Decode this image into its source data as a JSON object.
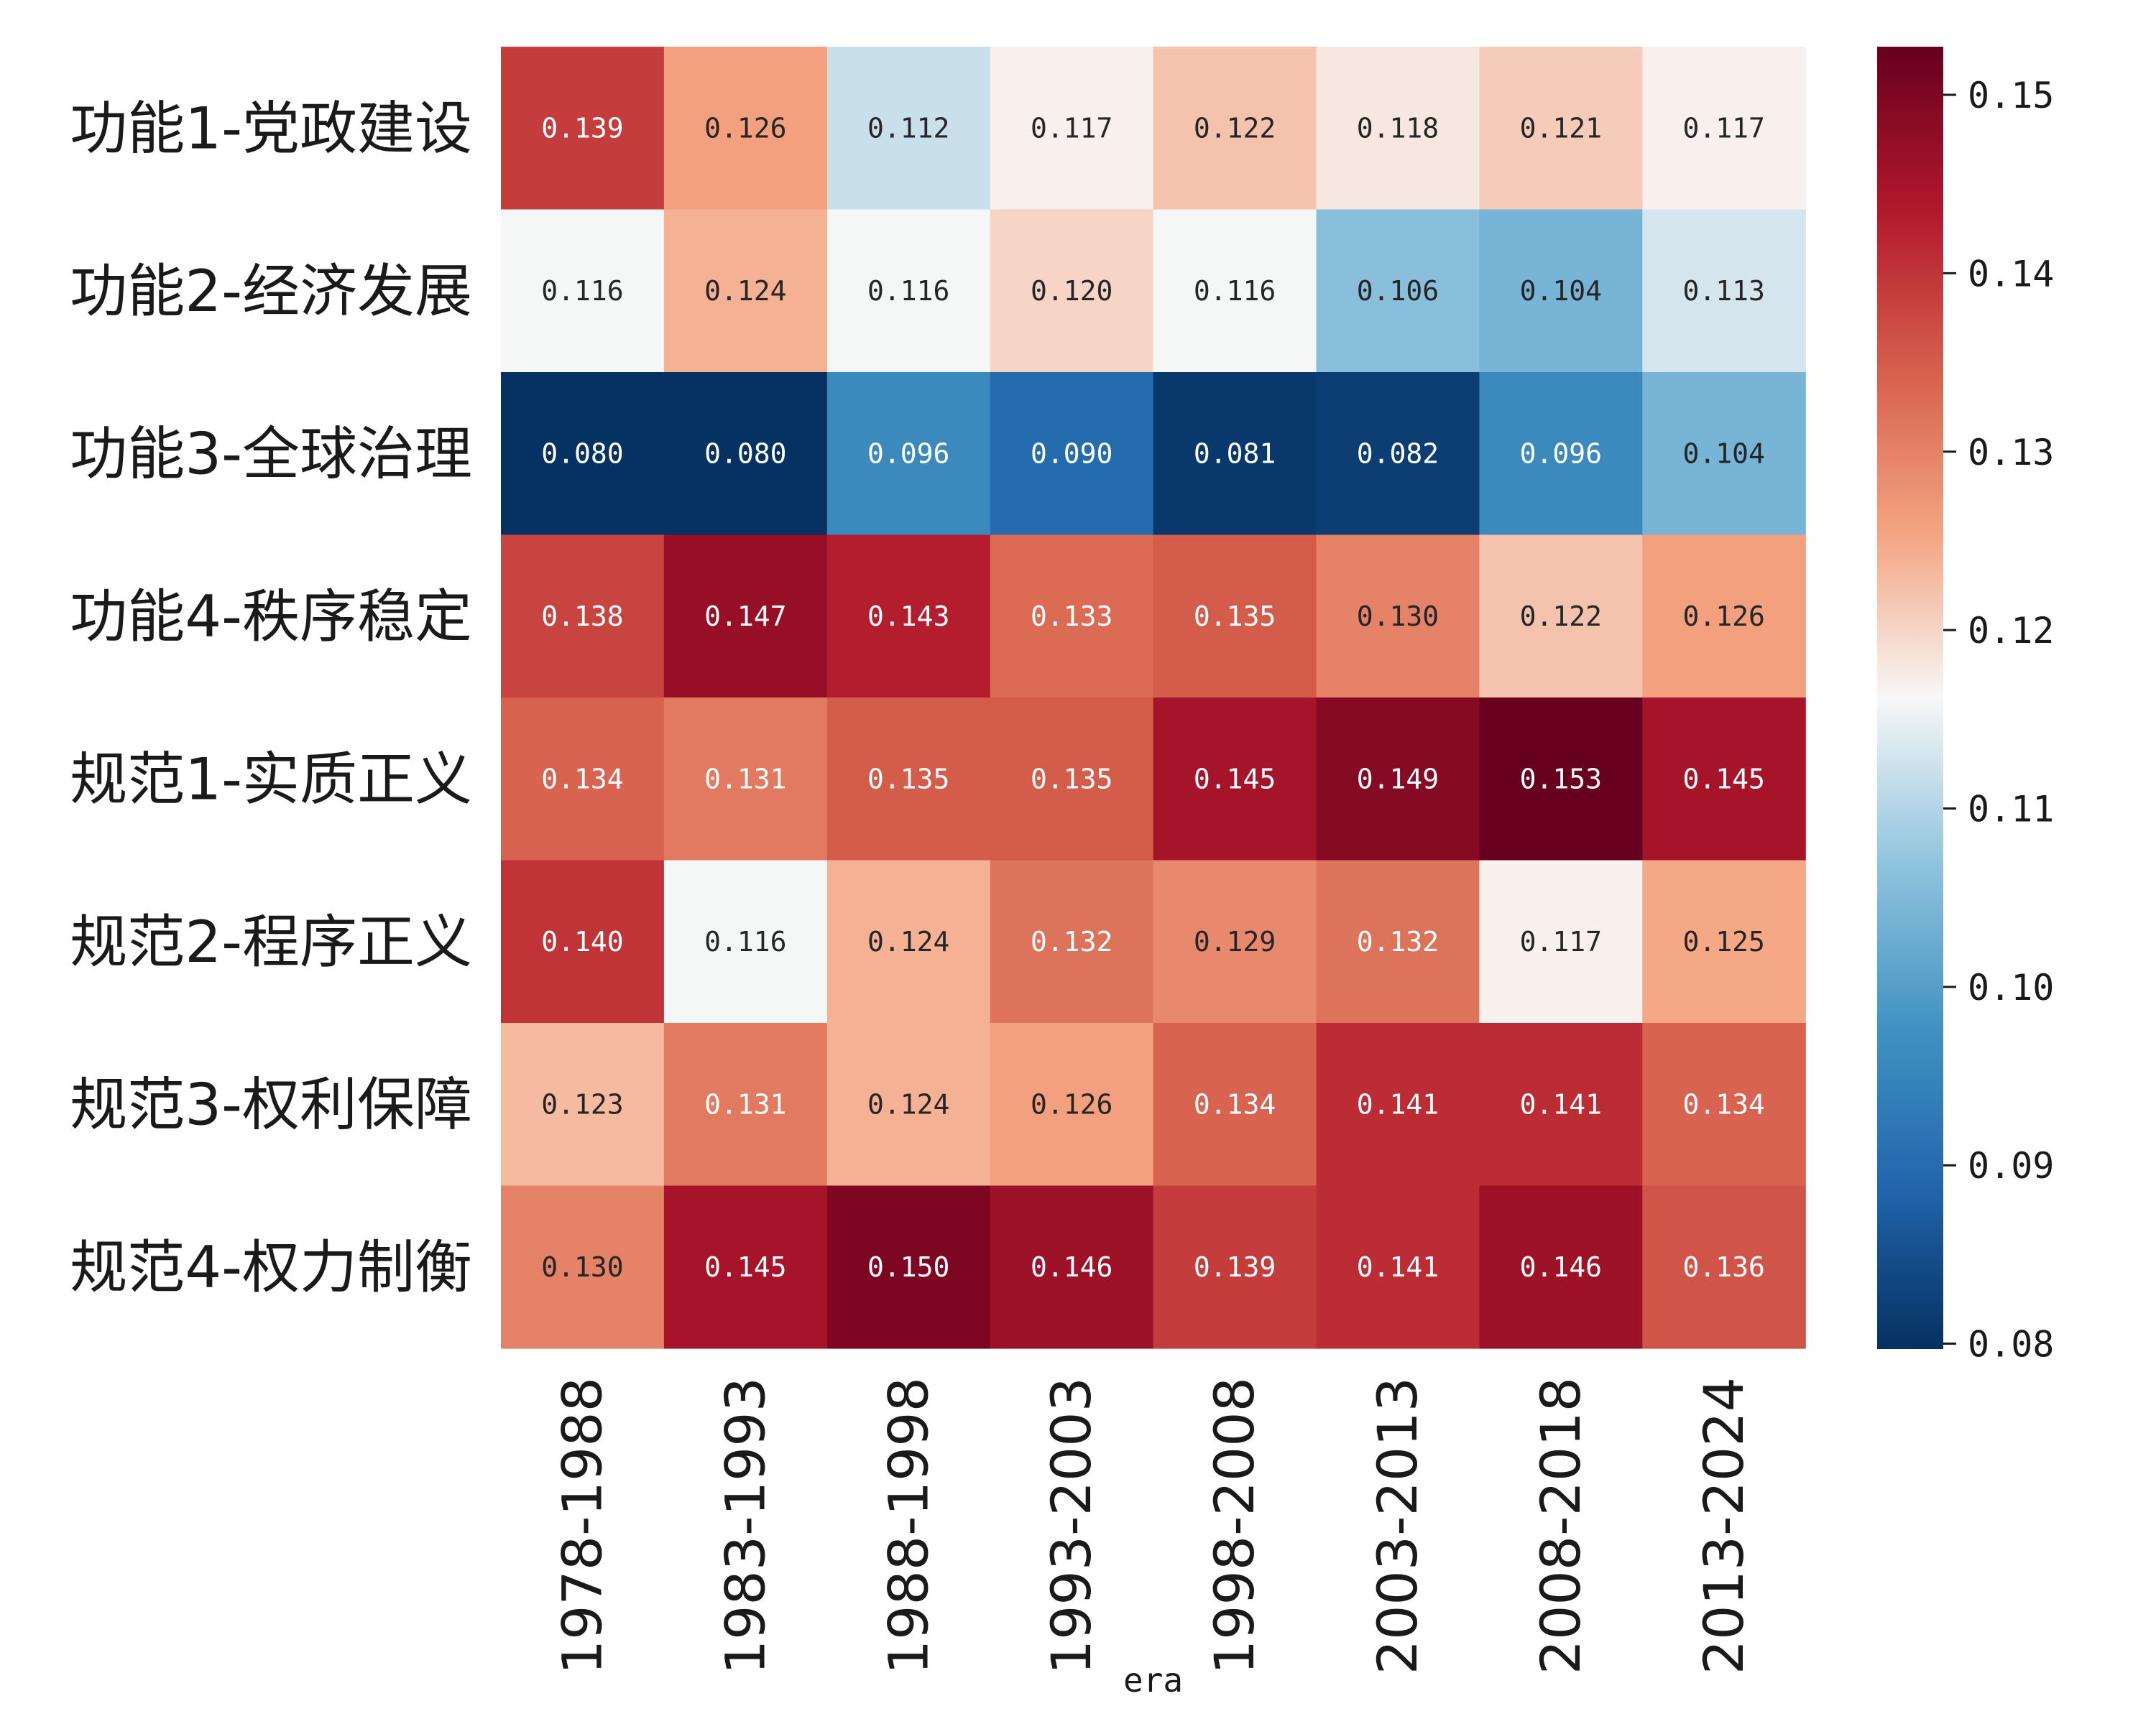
{
  "chart_data": {
    "type": "heatmap",
    "xlabel": "era",
    "ylabel": "",
    "x": [
      "1978-1988",
      "1983-1993",
      "1988-1998",
      "1993-2003",
      "1998-2008",
      "2003-2013",
      "2008-2018",
      "2013-2024"
    ],
    "y": [
      "功能1-党政建设",
      "功能2-经济发展",
      "功能3-全球治理",
      "功能4-秩序稳定",
      "规范1-实质正义",
      "规范2-程序正义",
      "规范3-权利保障",
      "规范4-权力制衡"
    ],
    "values": [
      [
        0.139,
        0.126,
        0.112,
        0.117,
        0.122,
        0.118,
        0.121,
        0.117
      ],
      [
        0.116,
        0.124,
        0.116,
        0.12,
        0.116,
        0.106,
        0.104,
        0.113
      ],
      [
        0.08,
        0.08,
        0.096,
        0.09,
        0.081,
        0.082,
        0.096,
        0.104
      ],
      [
        0.138,
        0.147,
        0.143,
        0.133,
        0.135,
        0.13,
        0.122,
        0.126
      ],
      [
        0.134,
        0.131,
        0.135,
        0.135,
        0.145,
        0.149,
        0.153,
        0.145
      ],
      [
        0.14,
        0.116,
        0.124,
        0.132,
        0.129,
        0.132,
        0.117,
        0.125
      ],
      [
        0.123,
        0.131,
        0.124,
        0.126,
        0.134,
        0.141,
        0.141,
        0.134
      ],
      [
        0.13,
        0.145,
        0.15,
        0.146,
        0.139,
        0.141,
        0.146,
        0.136
      ]
    ],
    "vmin": 0.0797,
    "vmax": 0.1527,
    "colorbar_ticks": [
      "0.08",
      "0.09",
      "0.10",
      "0.11",
      "0.12",
      "0.13",
      "0.14",
      "0.15"
    ],
    "colormap": "RdBu_r",
    "annotations": true
  }
}
